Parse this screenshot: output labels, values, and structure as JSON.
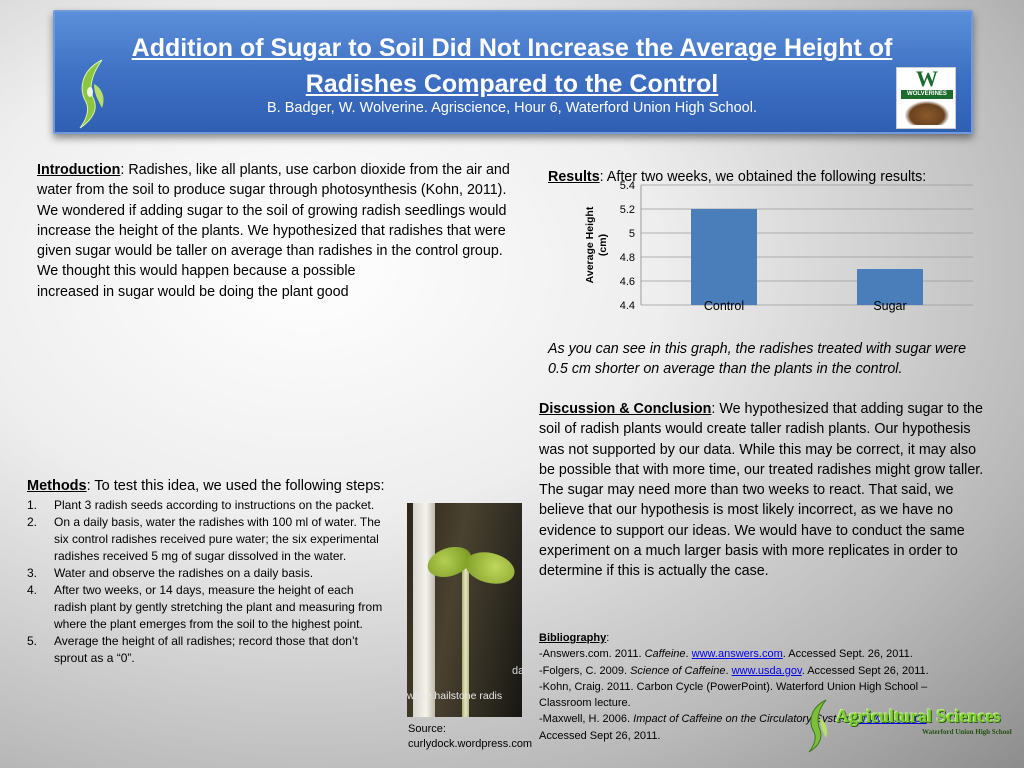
{
  "header": {
    "title": "Addition of Sugar to Soil Did Not Increase the Average Height of Radishes Compared to the Control",
    "authors": "B. Badger, W. Wolverine.  Agriscience, Hour 6, Waterford Union High School.",
    "right_logo_text": "W",
    "right_logo_band": "WOLVERINES"
  },
  "introduction": {
    "heading": "Introduction",
    "text": ": Radishes, like all plants, use carbon dioxide from the air and water from the soil to produce sugar through photosynthesis (Kohn, 2011).  We wondered if adding sugar to the soil of growing radish seedlings would increase the height of the plants.   We hypothesized that radishes that were given sugar would be taller on average than radishes in the control group.  We thought this would happen because a possible",
    "text2": "increased in sugar would be doing the plant good"
  },
  "methods": {
    "heading": "Methods",
    "lead": ": To test this idea, we used the following steps:",
    "steps": [
      {
        "num": "1.",
        "text": "Plant 3 radish seeds according to instructions on the packet."
      },
      {
        "num": "2.",
        "text": "On a daily basis, water the radishes with 100 ml of water.  The six control radishes received pure water; the six experimental radishes received 5 mg of sugar dissolved in the water."
      },
      {
        "num": "3.",
        "text": "Water and observe the radishes on a daily basis."
      },
      {
        "num": "4.",
        "text": "After two weeks, or 14 days, measure the height of each radish plant by gently stretching the plant and measuring from where the plant emerges from the soil to the highest point."
      },
      {
        "num": "5.",
        "text": "Average the height of all radishes; record those that don’t sprout as a “0”."
      }
    ]
  },
  "photo": {
    "caption": "white hailstone radis",
    "corner_text": "da",
    "source": "Source: curlydock.wordpress.com"
  },
  "results": {
    "heading": "Results",
    "text": ": After two weeks, we obtained the following results:",
    "note": "As you can see in this graph, the radishes treated with sugar were 0.5 cm shorter on average than the plants in the control."
  },
  "chart_data": {
    "type": "bar",
    "categories": [
      "Control",
      "Sugar"
    ],
    "values": [
      5.2,
      4.7
    ],
    "ylabel_line1": "Average Height",
    "ylabel_line2": "(cm)",
    "ylim": [
      4.4,
      5.4
    ],
    "yticks": [
      "5.4",
      "5.2",
      "5",
      "4.8",
      "4.6",
      "4.4"
    ],
    "grid": true,
    "bar_color": "#4a7ebb"
  },
  "discussion": {
    "heading": "Discussion & Conclusion",
    "text": ":  We hypothesized that  adding sugar to the soil of radish plants would create taller radish plants. Our hypothesis was not supported by our data.  While this may be correct, it may also be possible that with more time, our treated radishes might grow taller.  The sugar may need more than two weeks to react.  That said, we believe that our hypothesis is most likely incorrect, as we have no evidence to support our ideas.  We would have to conduct the same experiment on a much larger basis with more replicates in order to determine if this is actually the case."
  },
  "bibliography": {
    "heading": "Bibliography",
    "colon": ":",
    "e1_a": "-Answers.com.  2011.  ",
    "e1_title": "Caffeine",
    "e1_b": ".  ",
    "e1_link": "www.answers.com",
    "e1_c": ".  Accessed Sept. 26, 2011.",
    "e2_a": "-Folgers, C.  2009.  ",
    "e2_title": "Science of Caffeine",
    "e2_b": ".  ",
    "e2_link": "www.usda.gov",
    "e2_c": ".  Accessed Sept 26, 2011.",
    "e3": "-Kohn, Craig.  2011.  Carbon Cycle (PowerPoint).  Waterford Union High School – Classroom lecture.",
    "e4_a": "-Maxwell, H. 2006.  ",
    "e4_title": "Impact of Caffeine on the Circulatory System",
    "e4_b": ".  ",
    "e4_link": "www.wisc.edu",
    "e4_c": ".",
    "e4_d": "Accessed Sept 26, 2011."
  },
  "footer_logo": {
    "title": "Agricultural Sciences",
    "subtitle": "Waterford Union High School"
  }
}
